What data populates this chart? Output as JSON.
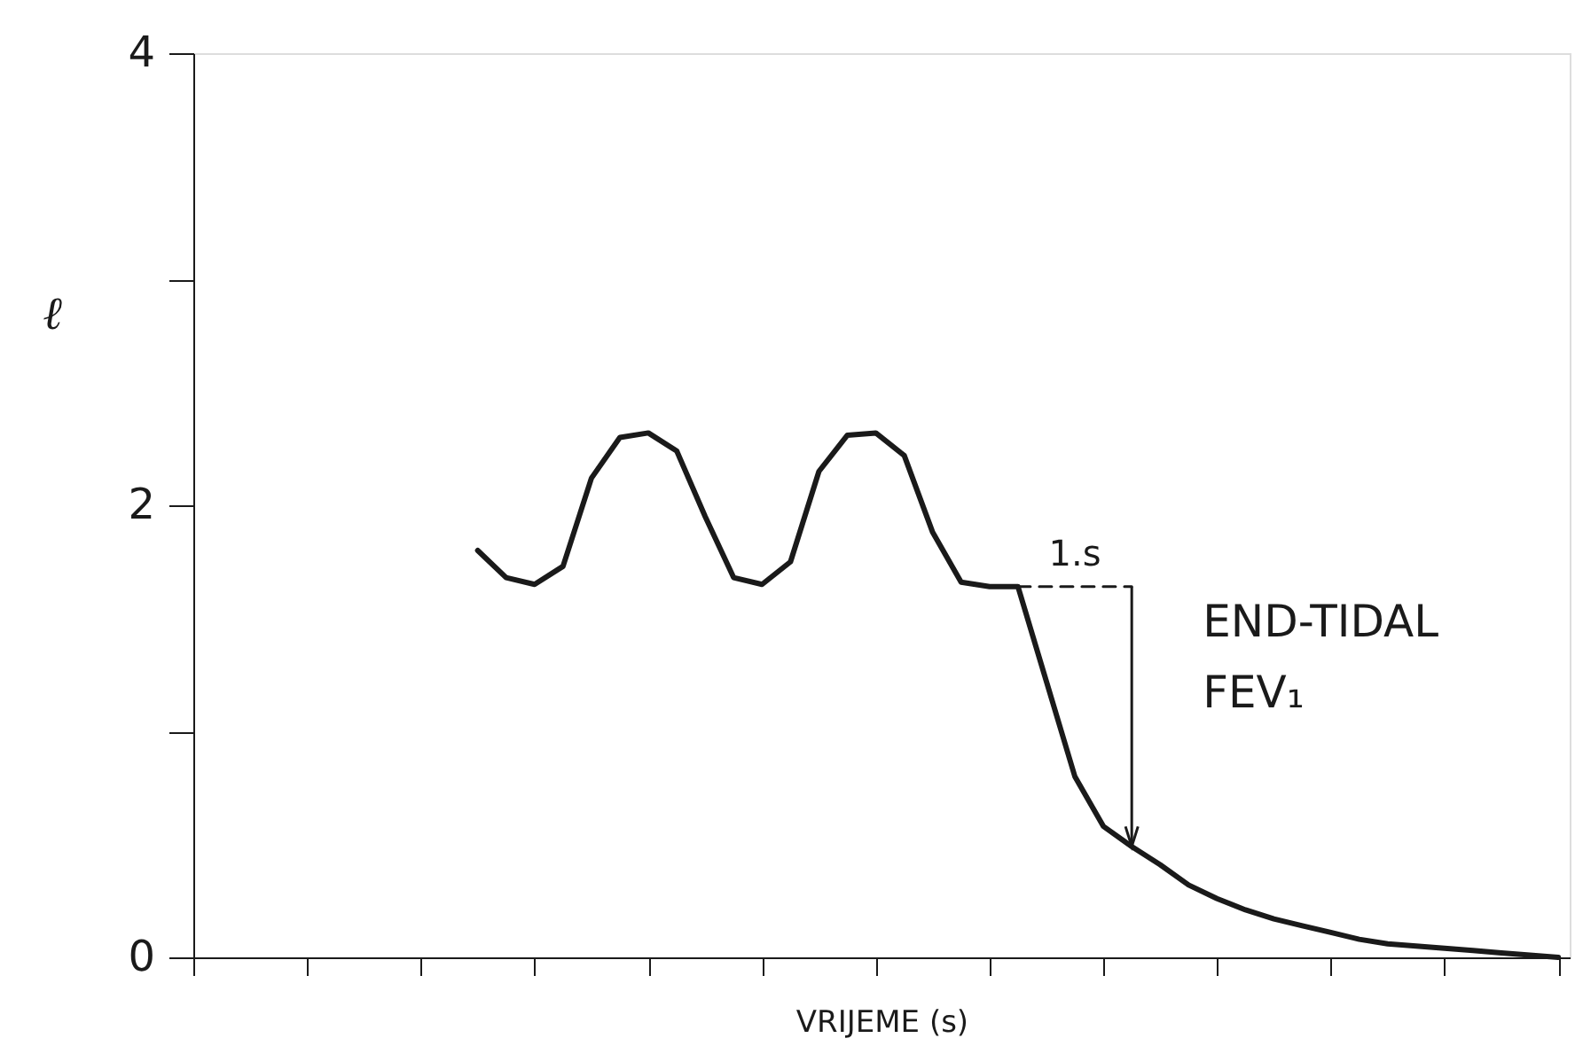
{
  "chart_data": {
    "type": "line",
    "xlabel": "VRIJEME (s)",
    "ylabel": "ℓ",
    "categories": [
      null,
      null,
      null,
      null,
      null,
      null,
      null,
      null,
      null,
      null,
      null,
      null,
      null,
      null,
      null,
      null,
      null,
      null,
      null,
      null,
      null,
      null,
      null,
      null,
      null,
      null,
      null,
      null,
      null,
      null,
      null,
      null,
      null,
      null,
      null,
      null,
      null,
      null,
      null,
      null,
      null,
      null,
      null,
      null,
      null,
      null,
      null,
      null,
      null
    ],
    "ylim": [
      0,
      4
    ],
    "yticks": [
      0,
      {
        "value": 1,
        "label": null
      },
      2,
      {
        "value": 3,
        "label": null
      },
      4
    ],
    "tick_labels": "y",
    "grid": false,
    "series": [
      {
        "color": "#1a1a1a",
        "line_style": "solid",
        "values": [
          null,
          null,
          null,
          null,
          null,
          null,
          null,
          null,
          null,
          null,
          1.8,
          1.68,
          1.65,
          1.73,
          2.12,
          2.3,
          2.32,
          2.24,
          1.95,
          1.68,
          1.65,
          1.75,
          2.15,
          2.31,
          2.32,
          2.22,
          1.88,
          1.66,
          1.64,
          1.64,
          1.22,
          0.8,
          0.58,
          0.49,
          0.41,
          0.32,
          0.26,
          0.21,
          0.17,
          0.14,
          0.11,
          0.08,
          0.06,
          0.05,
          0.04,
          0.03,
          0.02,
          0.01,
          0
        ]
      },
      {
        "color": "#1a1a1a",
        "line_style": "dashed",
        "values": [
          null,
          null,
          null,
          null,
          null,
          null,
          null,
          null,
          null,
          null,
          null,
          null,
          null,
          null,
          null,
          null,
          null,
          null,
          null,
          null,
          null,
          null,
          null,
          null,
          null,
          null,
          null,
          null,
          null,
          1.64,
          1.64,
          1.64,
          1.64,
          1.64,
          null,
          null,
          null,
          null,
          null,
          null,
          null,
          null,
          null,
          null,
          null,
          null,
          null,
          null,
          null
        ]
      }
    ],
    "annotations": [
      "1.s",
      "END-TIDAL FEV₁"
    ]
  }
}
